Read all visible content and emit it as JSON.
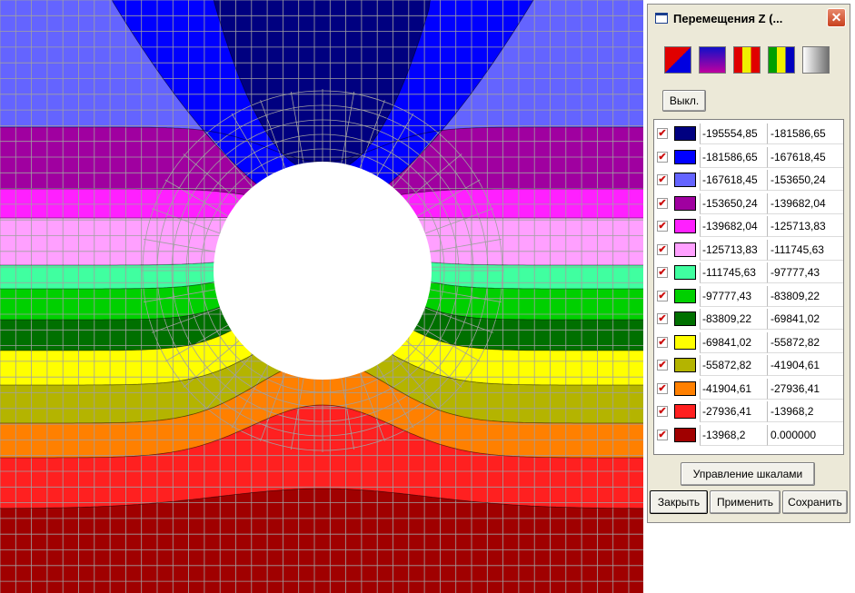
{
  "window": {
    "title": "Перемещения Z (..."
  },
  "palettes": [
    {
      "name": "palette-red-blue-diagonal",
      "colors": [
        "#e00000",
        "#0000e0"
      ]
    },
    {
      "name": "palette-blue-magenta-gradient",
      "colors": [
        "#1010c8",
        "#c000a0"
      ]
    },
    {
      "name": "palette-red-yellow-stripes",
      "colors": [
        "#e00000",
        "#f0f000",
        "#e00000"
      ]
    },
    {
      "name": "palette-green-yellow-blue-stripes",
      "colors": [
        "#00a000",
        "#f0f000",
        "#0000c0"
      ]
    },
    {
      "name": "palette-gray-gradient",
      "colors": [
        "#ffffff",
        "#707070"
      ]
    }
  ],
  "buttons": {
    "off": "Выкл.",
    "manage_scales": "Управление шкалами",
    "close": "Закрыть",
    "apply": "Применить",
    "save": "Сохранить"
  },
  "scale": [
    {
      "color": "#000080",
      "from": "-195554,85",
      "to": "-181586,65",
      "checked": true
    },
    {
      "color": "#0000ff",
      "from": "-181586,65",
      "to": "-167618,45",
      "checked": true
    },
    {
      "color": "#6464ff",
      "from": "-167618,45",
      "to": "-153650,24",
      "checked": true
    },
    {
      "color": "#a000a0",
      "from": "-153650,24",
      "to": "-139682,04",
      "checked": true
    },
    {
      "color": "#ff20ff",
      "from": "-139682,04",
      "to": "-125713,83",
      "checked": true
    },
    {
      "color": "#ffa0ff",
      "from": "-125713,83",
      "to": "-111745,63",
      "checked": true
    },
    {
      "color": "#40ffa0",
      "from": "-111745,63",
      "to": "-97777,43",
      "checked": true
    },
    {
      "color": "#00d000",
      "from": "-97777,43",
      "to": "-83809,22",
      "checked": true
    },
    {
      "color": "#007000",
      "from": "-83809,22",
      "to": "-69841,02",
      "checked": true
    },
    {
      "color": "#ffff00",
      "from": "-69841,02",
      "to": "-55872,82",
      "checked": true
    },
    {
      "color": "#b4b400",
      "from": "-55872,82",
      "to": "-41904,61",
      "checked": true
    },
    {
      "color": "#ff8000",
      "from": "-41904,61",
      "to": "-27936,41",
      "checked": true
    },
    {
      "color": "#ff2020",
      "from": "-27936,41",
      "to": "-13968,2",
      "checked": true
    },
    {
      "color": "#a00000",
      "from": "-13968,2",
      "to": "0.000000",
      "checked": true
    }
  ],
  "mesh": {
    "line_color": "#a0a0a0",
    "hole_color": "#ffffff"
  }
}
